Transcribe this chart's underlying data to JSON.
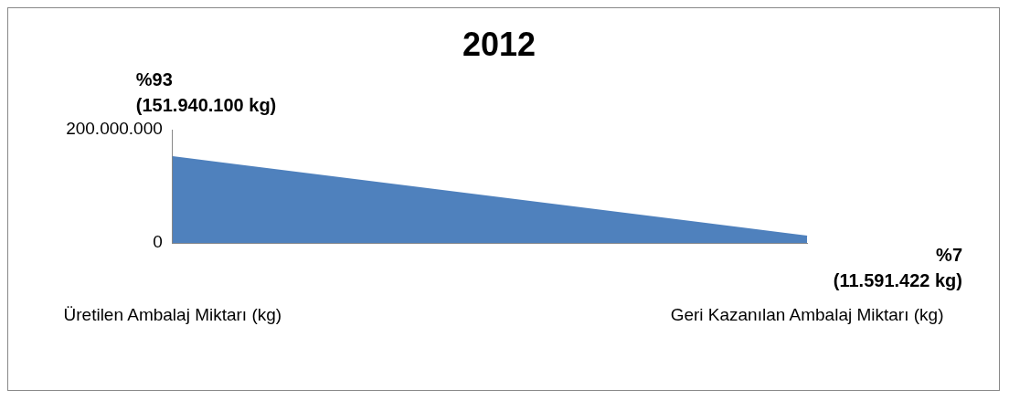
{
  "chart_data": {
    "type": "area",
    "title": "2012",
    "categories": [
      "Üretilen Ambalaj Miktarı (kg)",
      "Geri Kazanılan Ambalaj Miktarı (kg)"
    ],
    "values": [
      151940100,
      11591422
    ],
    "value_labels": [
      "%93\n(151.940.100 kg)",
      "%7\n(11.591.422 kg)"
    ],
    "color": "#4f81bd",
    "ylim": [
      0,
      200000000
    ],
    "yticks": [
      0,
      {
        "value": 200000000,
        "label": "200.000.000"
      }
    ],
    "grid": false,
    "legend": false
  }
}
